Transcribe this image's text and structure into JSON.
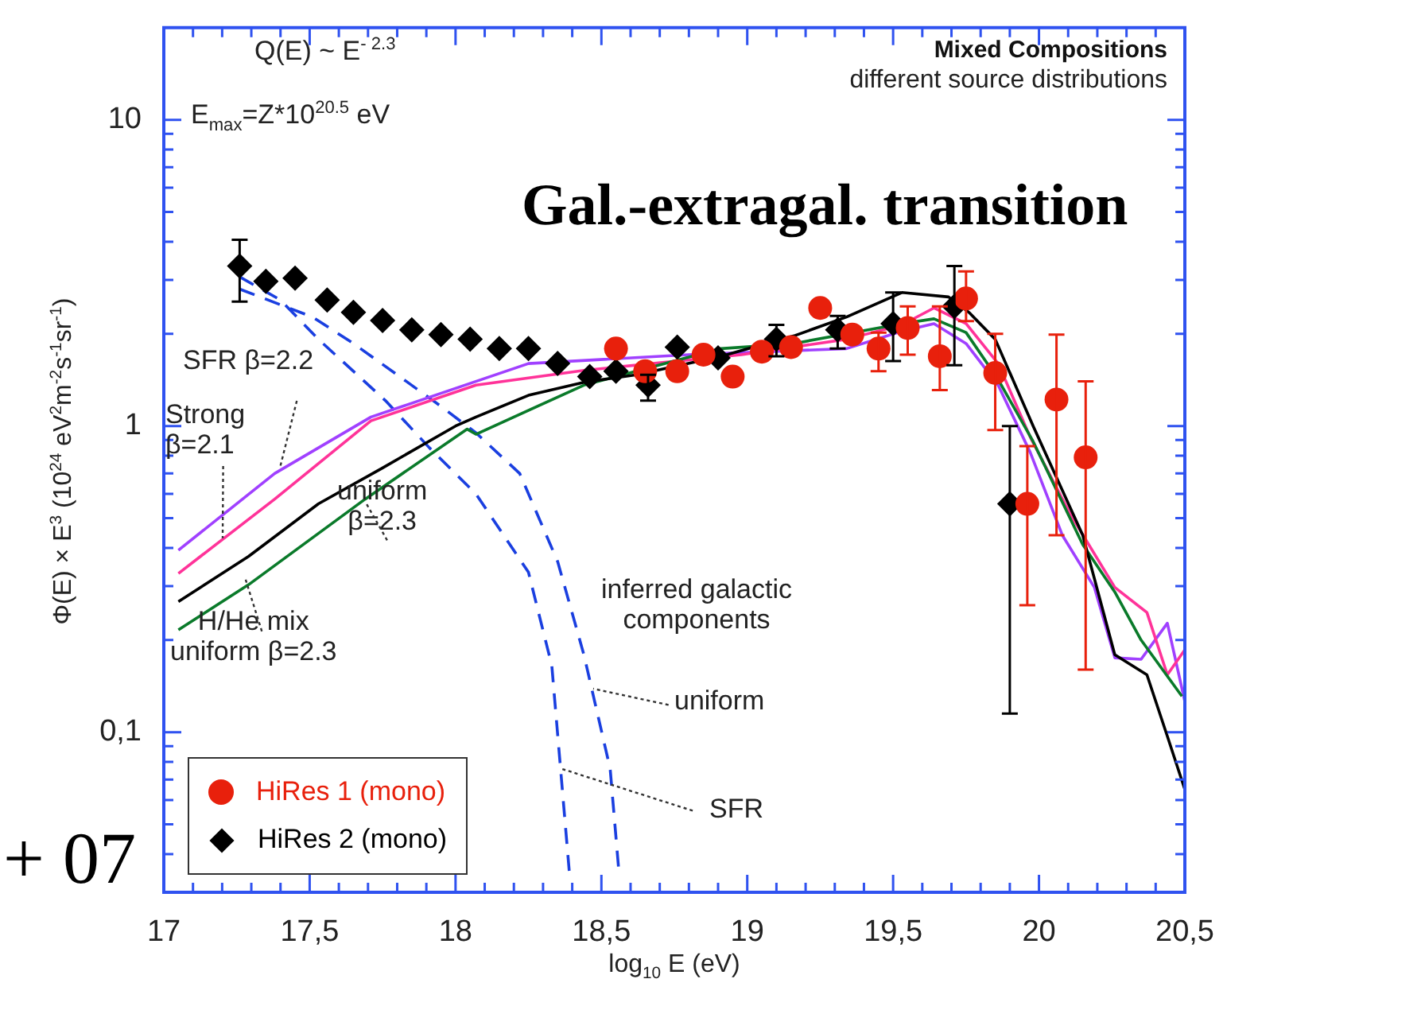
{
  "chart_data": {
    "type": "line",
    "title": "Gal.-extragal. transition",
    "xlabel": "log$_{10}$ E (eV)",
    "ylabel": "Φ(E) × E$^{3}$ (10$^{24}$ eV$^{2}$m$^{-2}$s$^{-1}$sr$^{-1}$)",
    "annotations": [
      "Q(E) ~ E$^{- 2.3}$",
      "E$_{max}$=Z*10$^{20.5}$ eV",
      "Mixed Compositions",
      "different source distributions",
      {
        "text": "SFR β=2.2",
        "x": 17.4,
        "y": 0.73
      },
      {
        "text": "Strong\nβ=2.1",
        "x": 17.2,
        "y": 0.43
      },
      {
        "text": "uniform\nβ=2.3",
        "x": 17.69,
        "y": 0.56
      },
      {
        "text": "H/He mix\nuniform β=2.3",
        "x": 17.28,
        "y": 0.32
      },
      "inferred galactic\ncomponents",
      {
        "text": "uniform",
        "x": 18.47,
        "y": 0.139
      },
      {
        "text": "SFR",
        "x": 18.36,
        "y": 0.076
      },
      "+ 07"
    ],
    "log": "y",
    "legend": "bottom left",
    "xlim": [
      17,
      20.5
    ],
    "ylim": [
      0.03,
      20
    ],
    "xticks": [
      17,
      {
        "value": 17.1,
        "label": null
      },
      {
        "value": 17.2,
        "label": null
      },
      {
        "value": 17.3,
        "label": null
      },
      {
        "value": 17.4,
        "label": null
      },
      {
        "value": 17.5,
        "label": "17,5"
      },
      {
        "value": 17.6,
        "label": null
      },
      {
        "value": 17.7,
        "label": null
      },
      {
        "value": 17.8,
        "label": null
      },
      {
        "value": 17.9,
        "label": null
      },
      18,
      {
        "value": 18.1,
        "label": null
      },
      {
        "value": 18.2,
        "label": null
      },
      {
        "value": 18.3,
        "label": null
      },
      {
        "value": 18.4,
        "label": null
      },
      {
        "value": 18.5,
        "label": "18,5"
      },
      {
        "value": 18.6,
        "label": null
      },
      {
        "value": 18.7,
        "label": null
      },
      {
        "value": 18.8,
        "label": null
      },
      {
        "value": 18.9,
        "label": null
      },
      19,
      {
        "value": 19.1,
        "label": null
      },
      {
        "value": 19.2,
        "label": null
      },
      {
        "value": 19.3,
        "label": null
      },
      {
        "value": 19.4,
        "label": null
      },
      {
        "value": 19.5,
        "label": "19,5"
      },
      {
        "value": 19.6,
        "label": null
      },
      {
        "value": 19.7,
        "label": null
      },
      {
        "value": 19.8,
        "label": null
      },
      {
        "value": 19.9,
        "label": null
      },
      20,
      {
        "value": 20.1,
        "label": null
      },
      {
        "value": 20.2,
        "label": null
      },
      {
        "value": 20.3,
        "label": null
      },
      {
        "value": 20.4,
        "label": null
      },
      {
        "value": 20.5,
        "label": "20,5"
      }
    ],
    "yticks": [
      {
        "value": 0.04,
        "label": null
      },
      {
        "value": 0.05,
        "label": null
      },
      {
        "value": 0.06,
        "label": null
      },
      {
        "value": 0.07,
        "label": null
      },
      {
        "value": 0.08,
        "label": null
      },
      {
        "value": 0.09,
        "label": null
      },
      {
        "value": 0.1,
        "label": "0,1"
      },
      {
        "value": 0.2,
        "label": null
      },
      {
        "value": 0.3,
        "label": null
      },
      {
        "value": 0.4,
        "label": null
      },
      {
        "value": 0.5,
        "label": null
      },
      {
        "value": 0.6,
        "label": null
      },
      {
        "value": 0.7,
        "label": null
      },
      {
        "value": 0.8,
        "label": null
      },
      {
        "value": 0.9,
        "label": null
      },
      1,
      {
        "value": 2,
        "label": null
      },
      {
        "value": 3,
        "label": null
      },
      {
        "value": 4,
        "label": null
      },
      {
        "value": 5,
        "label": null
      },
      {
        "value": 6,
        "label": null
      },
      {
        "value": 7,
        "label": null
      },
      {
        "value": 8,
        "label": null
      },
      {
        "value": 9,
        "label": null
      },
      10
    ],
    "series": [
      {
        "name": "HiRes 1 (mono)",
        "type": "scatter",
        "marker": "circle",
        "color": "#e8200c",
        "x": [
          18.55,
          18.65,
          18.76,
          18.85,
          18.95,
          19.05,
          19.15,
          19.25,
          19.36,
          19.45,
          19.55,
          19.66,
          19.75,
          19.85,
          19.96,
          20.06,
          20.16
        ],
        "values": [
          1.79,
          1.51,
          1.51,
          1.71,
          1.45,
          1.75,
          1.81,
          2.43,
          1.99,
          1.79,
          2.09,
          1.69,
          2.61,
          1.49,
          0.557,
          1.22,
          0.79
        ],
        "errors": [
          null,
          null,
          null,
          null,
          null,
          null,
          null,
          null,
          null,
          [
            1.51,
            2.02
          ],
          [
            1.71,
            2.46
          ],
          [
            1.31,
            2.46
          ],
          [
            2.2,
            3.2
          ],
          [
            0.97,
            2.0
          ],
          [
            0.26,
            0.86
          ],
          [
            0.44,
            1.99
          ],
          [
            0.16,
            1.4
          ]
        ]
      },
      {
        "name": "HiRes 2 (mono)",
        "type": "scatter",
        "marker": "diamond",
        "color": "#000000",
        "x": [
          17.26,
          17.35,
          17.45,
          17.56,
          17.65,
          17.75,
          17.85,
          17.95,
          18.05,
          18.15,
          18.25,
          18.35,
          18.46,
          18.55,
          18.66,
          18.76,
          18.9,
          19.1,
          19.31,
          19.5,
          19.71,
          19.9
        ],
        "values": [
          3.33,
          2.97,
          3.04,
          2.58,
          2.35,
          2.21,
          2.06,
          1.99,
          1.92,
          1.79,
          1.79,
          1.6,
          1.45,
          1.51,
          1.36,
          1.81,
          1.67,
          1.92,
          2.06,
          2.16,
          2.46,
          0.557
        ],
        "errors": [
          [
            2.55,
            4.06
          ],
          null,
          null,
          null,
          null,
          null,
          null,
          null,
          null,
          null,
          null,
          null,
          null,
          null,
          [
            1.21,
            1.47
          ],
          null,
          null,
          [
            1.69,
            2.14
          ],
          [
            1.79,
            2.29
          ],
          [
            1.63,
            2.73
          ],
          [
            1.58,
            3.33
          ],
          [
            0.115,
            1.0
          ]
        ]
      },
      {
        "type": "line",
        "color": "#000000",
        "line_style": "solid",
        "x": [
          17.05,
          17.29,
          17.53,
          17.75,
          18.0,
          18.07,
          18.25,
          18.44,
          18.62,
          18.91,
          19.16,
          19.34,
          19.53,
          19.69,
          19.76,
          19.85,
          19.98,
          20.15,
          20.26,
          20.37,
          20.44,
          20.5
        ],
        "values": [
          0.267,
          0.375,
          0.557,
          0.73,
          1.0,
          1.07,
          1.26,
          1.39,
          1.47,
          1.69,
          1.97,
          2.27,
          2.73,
          2.64,
          2.35,
          1.92,
          1.0,
          0.44,
          0.179,
          0.154,
          0.097,
          0.065
        ]
      },
      {
        "type": "line",
        "color": "#0a7a2a",
        "line_style": "solid",
        "x": [
          17.05,
          17.29,
          17.69,
          18.04,
          18.07,
          18.44,
          18.91,
          19.16,
          19.53,
          19.64,
          19.75,
          19.86,
          19.98,
          20.15,
          20.26,
          20.35,
          20.49
        ],
        "values": [
          0.216,
          0.303,
          0.577,
          0.977,
          0.94,
          1.36,
          1.79,
          1.86,
          2.16,
          2.24,
          2.02,
          1.42,
          0.89,
          0.41,
          0.287,
          0.2,
          0.131
        ]
      },
      {
        "type": "line",
        "color": "#ff3399",
        "line_style": "solid",
        "x": [
          17.05,
          17.38,
          17.71,
          18.07,
          18.44,
          18.98,
          19.34,
          19.53,
          19.64,
          19.75,
          19.86,
          19.97,
          20.11,
          20.26,
          20.37,
          20.44,
          20.5
        ],
        "values": [
          0.33,
          0.577,
          1.04,
          1.36,
          1.52,
          1.71,
          1.92,
          2.14,
          2.43,
          2.16,
          1.6,
          0.92,
          0.51,
          0.297,
          0.246,
          0.154,
          0.186
        ]
      },
      {
        "type": "line",
        "color": "#a040ff",
        "line_style": "solid",
        "x": [
          17.05,
          17.38,
          17.71,
          18.25,
          18.8,
          19.34,
          19.53,
          19.64,
          19.75,
          19.86,
          19.97,
          20.08,
          20.19,
          20.26,
          20.35,
          20.44,
          20.5
        ],
        "values": [
          0.393,
          0.7,
          1.07,
          1.6,
          1.71,
          1.79,
          2.04,
          2.16,
          1.86,
          1.36,
          0.82,
          0.44,
          0.297,
          0.175,
          0.173,
          0.227,
          0.126
        ]
      },
      {
        "type": "line",
        "color": "#1a3fe0",
        "line_style": "dashed",
        "x": [
          17.26,
          17.4,
          17.53,
          17.76,
          17.91,
          18.07,
          18.25,
          18.33,
          18.36,
          18.39
        ],
        "values": [
          3.07,
          2.58,
          1.92,
          1.21,
          0.85,
          0.6,
          0.333,
          0.165,
          0.076,
          0.035
        ]
      },
      {
        "type": "line",
        "color": "#1a3fe0",
        "line_style": "dashed",
        "x": [
          17.26,
          17.51,
          17.65,
          17.8,
          17.95,
          18.07,
          18.22,
          18.35,
          18.44,
          18.53,
          18.56
        ],
        "values": [
          2.8,
          2.27,
          1.86,
          1.47,
          1.16,
          0.95,
          0.7,
          0.361,
          0.179,
          0.076,
          0.035
        ]
      }
    ]
  }
}
